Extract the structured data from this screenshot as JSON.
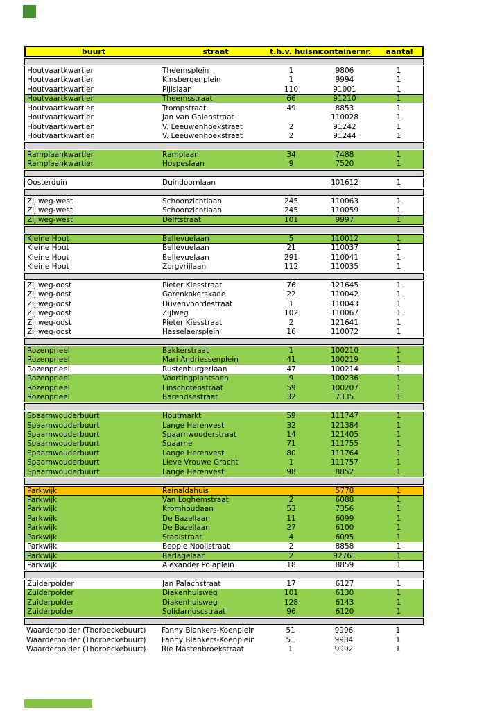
{
  "page": {
    "logo_color": "#43912f",
    "footer_bar_color": "#85c440",
    "colors": {
      "header_fill": "#ffff00",
      "highlight_green": "#92d050",
      "highlight_orange": "#ffc000",
      "separator_gray": "#d9d9d9",
      "border": "#000000"
    }
  },
  "table": {
    "columns": [
      {
        "key": "b",
        "name": "buurt",
        "label": "buurt"
      },
      {
        "key": "s",
        "name": "straat",
        "label": "straat"
      },
      {
        "key": "h",
        "name": "huisnr",
        "label": "t.h.v. huisnr."
      },
      {
        "key": "c",
        "name": "containernr",
        "label": "containernr."
      },
      {
        "key": "a",
        "name": "aantal",
        "label": "aantal"
      }
    ],
    "rows": [
      {
        "st": "sep"
      },
      {
        "b": "Houtvaartkwartier",
        "s": "Theemsplein",
        "h": "1",
        "c": "9806",
        "a": "1",
        "st": "w"
      },
      {
        "b": "Houtvaartkwartier",
        "s": "Kinsbergenplein",
        "h": "1",
        "c": "9994",
        "a": "1",
        "st": "w"
      },
      {
        "b": "Houtvaartkwartier",
        "s": "Pijlslaan",
        "h": "110",
        "c": "91001",
        "a": "1",
        "st": "w"
      },
      {
        "b": "Houtvaartkwartier",
        "s": "Theemsstraat",
        "h": "66",
        "c": "91210",
        "a": "1",
        "st": "gb"
      },
      {
        "b": "Houtvaartkwartier",
        "s": "Trompstraat",
        "h": "49",
        "c": "8853",
        "a": "1",
        "st": "w"
      },
      {
        "b": "Houtvaartkwartier",
        "s": "Jan van Galenstraat",
        "h": "",
        "c": "110028",
        "a": "1",
        "st": "w"
      },
      {
        "b": "Houtvaartkwartier",
        "s": "V. Leeuwenhoekstraat",
        "h": "2",
        "c": "91242",
        "a": "1",
        "st": "w"
      },
      {
        "b": "Houtvaartkwartier",
        "s": "V. Leeuwenhoekstraat",
        "h": "2",
        "c": "91244",
        "a": "1",
        "st": "w"
      },
      {
        "st": "sep"
      },
      {
        "b": "Ramplaankwartier",
        "s": "Ramplaan",
        "h": "34",
        "c": "7488",
        "a": "1",
        "st": "g"
      },
      {
        "b": "Ramplaankwartier",
        "s": "Hospeslaan",
        "h": "9",
        "c": "7520",
        "a": "1",
        "st": "g"
      },
      {
        "st": "sep"
      },
      {
        "b": "Oosterduin",
        "s": "Duindoornlaan",
        "h": "",
        "c": "101612",
        "a": "1",
        "st": "w"
      },
      {
        "st": "sep"
      },
      {
        "b": "Zijlweg-west",
        "s": "Schoonzichtlaan",
        "h": "245",
        "c": "110063",
        "a": "1",
        "st": "w"
      },
      {
        "b": "Zijlweg-west",
        "s": "Schoonzichtlaan",
        "h": "245",
        "c": "110059",
        "a": "1",
        "st": "w"
      },
      {
        "b": "Zijlweg-west",
        "s": "Delftstraat",
        "h": "101",
        "c": "9997",
        "a": "1",
        "st": "gb"
      },
      {
        "st": "sep"
      },
      {
        "b": "Kleine Hout",
        "s": "Bellevuelaan",
        "h": "5",
        "c": "110012",
        "a": "1",
        "st": "gb"
      },
      {
        "b": "Kleine Hout",
        "s": "Bellevuelaan",
        "h": "21",
        "c": "110037",
        "a": "1",
        "st": "w"
      },
      {
        "b": "Kleine Hout",
        "s": "Bellevuelaan",
        "h": "291",
        "c": "110041",
        "a": "1",
        "st": "w"
      },
      {
        "b": "Kleine Hout",
        "s": "Zorgvrijlaan",
        "h": "112",
        "c": "110035",
        "a": "1",
        "st": "w"
      },
      {
        "st": "sep"
      },
      {
        "b": "Zijlweg-oost",
        "s": "Pieter Kiesstraat",
        "h": "76",
        "c": "121645",
        "a": "1",
        "st": "w"
      },
      {
        "b": "Zijlweg-oost",
        "s": "Garenkokerskade",
        "h": "22",
        "c": "110042",
        "a": "1",
        "st": "w"
      },
      {
        "b": "Zijlweg-oost",
        "s": "Duvenvoordestraat",
        "h": "1",
        "c": "110043",
        "a": "1",
        "st": "w"
      },
      {
        "b": "Zijlweg-oost",
        "s": "Zijlweg",
        "h": "102",
        "c": "110067",
        "a": "1",
        "st": "w"
      },
      {
        "b": "Zijlweg-oost",
        "s": "Pieter Kiesstraat",
        "h": "2",
        "c": "121641",
        "a": "1",
        "st": "w"
      },
      {
        "b": "Zijlweg-oost",
        "s": "Hasselaersplein",
        "h": "16",
        "c": "110072",
        "a": "1",
        "st": "w"
      },
      {
        "st": "sep"
      },
      {
        "b": "Rozenprieel",
        "s": "Bakkerstraat",
        "h": "1",
        "c": "100210",
        "a": "1",
        "st": "g"
      },
      {
        "b": "Rozenprieel",
        "s": "Mari Andriessenplein",
        "h": "41",
        "c": "100219",
        "a": "1",
        "st": "g"
      },
      {
        "b": "Rozenprieel",
        "s": "Rustenburgerlaan",
        "h": "47",
        "c": "100214",
        "a": "1",
        "st": "w"
      },
      {
        "b": "Rozenprieel",
        "s": "Voortingplantsoen",
        "h": "9",
        "c": "100236",
        "a": "1",
        "st": "g"
      },
      {
        "b": "Rozenprieel",
        "s": "Linschotenstraat",
        "h": "59",
        "c": "100207",
        "a": "1",
        "st": "g"
      },
      {
        "b": "Rozenprieel",
        "s": "Barendsestraat",
        "h": "32",
        "c": "7335",
        "a": "1",
        "st": "g"
      },
      {
        "st": "sep"
      },
      {
        "b": "Spaarnwouderbuurt",
        "s": "Houtmarkt",
        "h": "59",
        "c": "111747",
        "a": "1",
        "st": "g"
      },
      {
        "b": "Spaarnwouderbuurt",
        "s": "Lange Herenvest",
        "h": "32",
        "c": "121384",
        "a": "1",
        "st": "g"
      },
      {
        "b": "Spaarnwouderbuurt",
        "s": "Spaarnwouderstraat",
        "h": "14",
        "c": "121405",
        "a": "1",
        "st": "g"
      },
      {
        "b": "Spaarnwouderbuurt",
        "s": "Spaarne",
        "h": "71",
        "c": "111755",
        "a": "1",
        "st": "g"
      },
      {
        "b": "Spaarnwouderbuurt",
        "s": "Lange Herenvest",
        "h": "80",
        "c": "111764",
        "a": "1",
        "st": "g"
      },
      {
        "b": "Spaarnwouderbuurt",
        "s": "Lieve Vrouwe Gracht",
        "h": "1",
        "c": "111757",
        "a": "1",
        "st": "g"
      },
      {
        "b": "Spaarnwouderbuurt",
        "s": "Lange Herenvest",
        "h": "98",
        "c": "8852",
        "a": "1",
        "st": "g"
      },
      {
        "st": "sep"
      },
      {
        "b": "Parkwijk",
        "s": "Reinaldahuis",
        "h": "",
        "c": "5778",
        "a": "1",
        "st": "ob"
      },
      {
        "b": "Parkwijk",
        "s": "Van Loghemstraat",
        "h": "2",
        "c": "6088",
        "a": "1",
        "st": "g"
      },
      {
        "b": "Parkwijk",
        "s": "Kromhoutlaan",
        "h": "53",
        "c": "7356",
        "a": "1",
        "st": "g"
      },
      {
        "b": "Parkwijk",
        "s": "De Bazellaan",
        "h": "11",
        "c": "6099",
        "a": "1",
        "st": "g"
      },
      {
        "b": "Parkwijk",
        "s": "De Bazellaan",
        "h": "27",
        "c": "6100",
        "a": "1",
        "st": "g"
      },
      {
        "b": "Parkwijk",
        "s": "Staalstraat",
        "h": "4",
        "c": "6095",
        "a": "1",
        "st": "g"
      },
      {
        "b": "Parkwijk",
        "s": "Beppie Nooijstraat",
        "h": "2",
        "c": "8858",
        "a": "1",
        "st": "w"
      },
      {
        "b": "Parkwijk",
        "s": "Berlagelaan",
        "h": "2",
        "c": "92761",
        "a": "1",
        "st": "gb"
      },
      {
        "b": "Parkwijk",
        "s": "Alexander Polaplein",
        "h": "18",
        "c": "8859",
        "a": "1",
        "st": "w"
      },
      {
        "st": "sep"
      },
      {
        "b": "Zuiderpolder",
        "s": "Jan Palachstraat",
        "h": "17",
        "c": "6127",
        "a": "1",
        "st": "w"
      },
      {
        "b": "Zuiderpolder",
        "s": "Diakenhuisweg",
        "h": "101",
        "c": "6130",
        "a": "1",
        "st": "g"
      },
      {
        "b": "Zuiderpolder",
        "s": "Diakenhuisweg",
        "h": "128",
        "c": "6143",
        "a": "1",
        "st": "g"
      },
      {
        "b": "Zuiderpolder",
        "s": "Solidarnoscstraat",
        "h": "96",
        "c": "6120",
        "a": "1",
        "st": "g"
      },
      {
        "st": "sep"
      },
      {
        "b": "Waarderpolder (Thorbeckebuurt)",
        "s": "Fanny Blankers-Koenplein",
        "h": "51",
        "c": "9996",
        "a": "1",
        "st": "w",
        "ns": true
      },
      {
        "b": "Waarderpolder (Thorbeckebuurt)",
        "s": "Fanny Blankers-Koenplein",
        "h": "51",
        "c": "9984",
        "a": "1",
        "st": "w",
        "ns": true
      },
      {
        "b": "Waarderpolder (Thorbeckebuurt)",
        "s": "Rie Mastenbroekstraat",
        "h": "1",
        "c": "9992",
        "a": "1",
        "st": "w",
        "ns": true
      }
    ]
  }
}
